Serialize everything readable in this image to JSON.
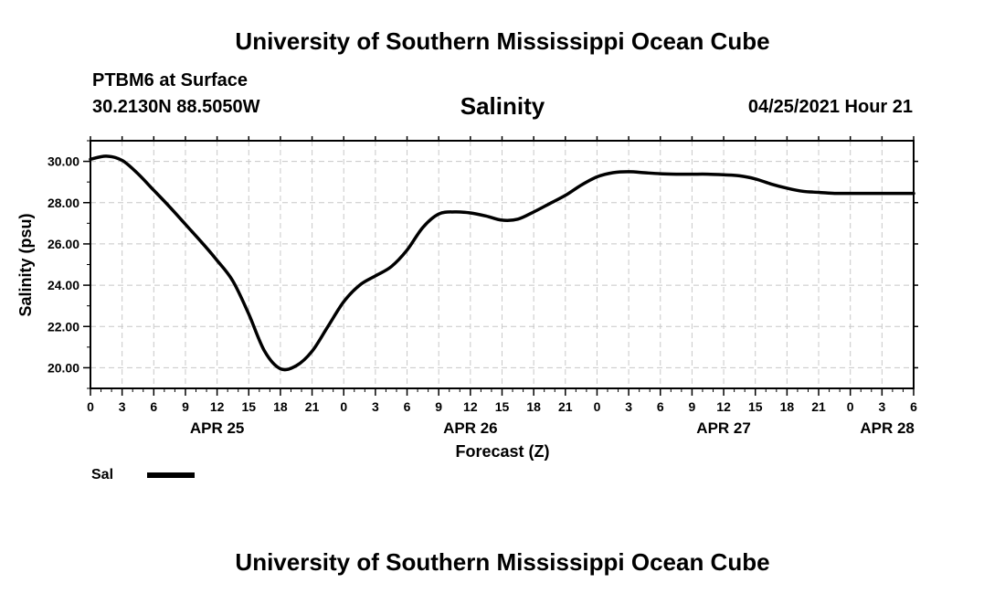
{
  "header": {
    "title_top": "University of Southern Mississippi Ocean Cube",
    "station": "PTBM6 at Surface",
    "coords": "30.2130N  88.5050W",
    "valid_time": "04/25/2021 Hour 21",
    "title_bottom": "University of Southern Mississippi Ocean Cube"
  },
  "legend": {
    "label": "Sal",
    "color": "#000000"
  },
  "chart_data": {
    "type": "line",
    "title": "Salinity",
    "xlabel": "Forecast (Z)",
    "ylabel": "Salinity (psu)",
    "xlim": [
      0,
      78
    ],
    "ylim": [
      19.0,
      31.0
    ],
    "grid": true,
    "x_ticks": [
      0,
      3,
      6,
      9,
      12,
      15,
      18,
      21,
      24,
      27,
      30,
      33,
      36,
      39,
      42,
      45,
      48,
      51,
      54,
      57,
      60,
      63,
      66,
      69,
      72,
      75,
      78
    ],
    "x_tick_labels": [
      "0",
      "3",
      "6",
      "9",
      "12",
      "15",
      "18",
      "21",
      "0",
      "3",
      "6",
      "9",
      "12",
      "15",
      "18",
      "21",
      "0",
      "3",
      "6",
      "9",
      "12",
      "15",
      "18",
      "21",
      "0",
      "3",
      "6"
    ],
    "y_ticks": [
      20,
      22,
      24,
      26,
      28,
      30
    ],
    "y_tick_labels": [
      "20.00",
      "22.00",
      "24.00",
      "26.00",
      "28.00",
      "30.00"
    ],
    "date_labels": [
      {
        "label": "APR 25",
        "x": 12
      },
      {
        "label": "APR 26",
        "x": 36
      },
      {
        "label": "APR 27",
        "x": 60
      },
      {
        "label": "APR 28",
        "x": 75.5
      }
    ],
    "series": [
      {
        "name": "Sal",
        "x": [
          0,
          1.5,
          3,
          4.5,
          6,
          7.5,
          9,
          10.5,
          12,
          13.5,
          15,
          16.5,
          18,
          19.5,
          21,
          22.5,
          24,
          25.5,
          27,
          28.5,
          30,
          31.5,
          33,
          34.5,
          36,
          37.5,
          39,
          40.5,
          42,
          43.5,
          45,
          46.5,
          48,
          49.5,
          51,
          52.5,
          54,
          55.5,
          57,
          58.5,
          60,
          61.5,
          63,
          64.5,
          66,
          67.5,
          69,
          70.5,
          72,
          73.5,
          75,
          76.5,
          78
        ],
        "values": [
          30.1,
          30.25,
          30.05,
          29.4,
          28.6,
          27.8,
          26.95,
          26.1,
          25.2,
          24.2,
          22.6,
          20.8,
          19.95,
          20.1,
          20.8,
          22.0,
          23.2,
          24.0,
          24.45,
          24.9,
          25.7,
          26.8,
          27.45,
          27.55,
          27.5,
          27.35,
          27.15,
          27.2,
          27.55,
          27.95,
          28.35,
          28.85,
          29.25,
          29.45,
          29.5,
          29.45,
          29.4,
          29.38,
          29.38,
          29.38,
          29.35,
          29.3,
          29.15,
          28.9,
          28.7,
          28.55,
          28.5,
          28.45,
          28.45,
          28.45,
          28.45,
          28.45,
          28.45
        ]
      }
    ]
  }
}
